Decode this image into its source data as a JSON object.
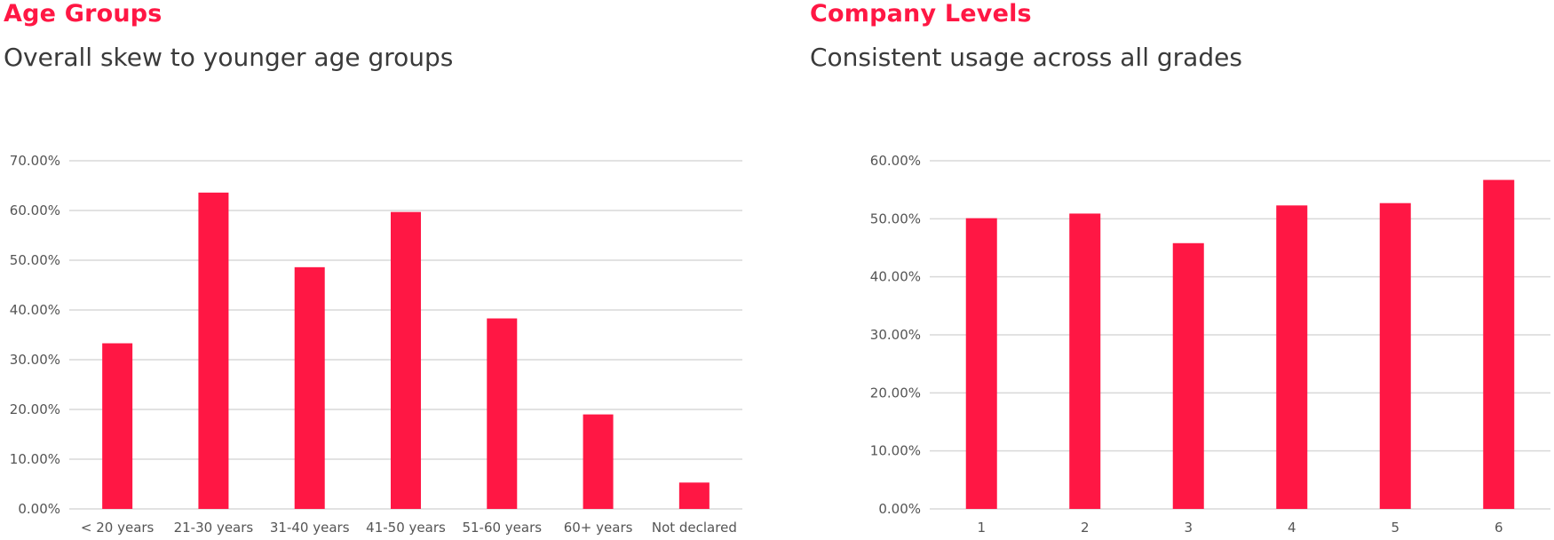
{
  "colors": {
    "accent": "#ff1744",
    "subtitle": "#3a3a3a",
    "tick": "#555555",
    "grid": "#d9d9d9"
  },
  "chart_data": [
    {
      "type": "bar",
      "title": "Age Groups",
      "subtitle": "Overall skew to younger age groups",
      "categories": [
        "< 20 years",
        "21-30 years",
        "31-40 years",
        "41-50 years",
        "51-60 years",
        "60+ years",
        "Not declared"
      ],
      "values": [
        33.3,
        63.6,
        48.6,
        59.7,
        38.3,
        19.0,
        5.3
      ],
      "y_ticks": [
        "0.00%",
        "10.00%",
        "20.00%",
        "30.00%",
        "40.00%",
        "50.00%",
        "60.00%",
        "70.00%"
      ],
      "ylim": [
        0,
        70
      ],
      "ystep": 10,
      "grid": true,
      "legend": "none",
      "xlabel": "",
      "ylabel": ""
    },
    {
      "type": "bar",
      "title": "Company Levels",
      "subtitle": "Consistent usage across all grades",
      "categories": [
        "1",
        "2",
        "3",
        "4",
        "5",
        "6"
      ],
      "values": [
        50.1,
        50.9,
        45.8,
        52.3,
        52.7,
        56.7
      ],
      "y_ticks": [
        "0.00%",
        "10.00%",
        "20.00%",
        "30.00%",
        "40.00%",
        "50.00%",
        "60.00%"
      ],
      "ylim": [
        0,
        60
      ],
      "ystep": 10,
      "grid": true,
      "legend": "none",
      "xlabel": "",
      "ylabel": ""
    }
  ]
}
